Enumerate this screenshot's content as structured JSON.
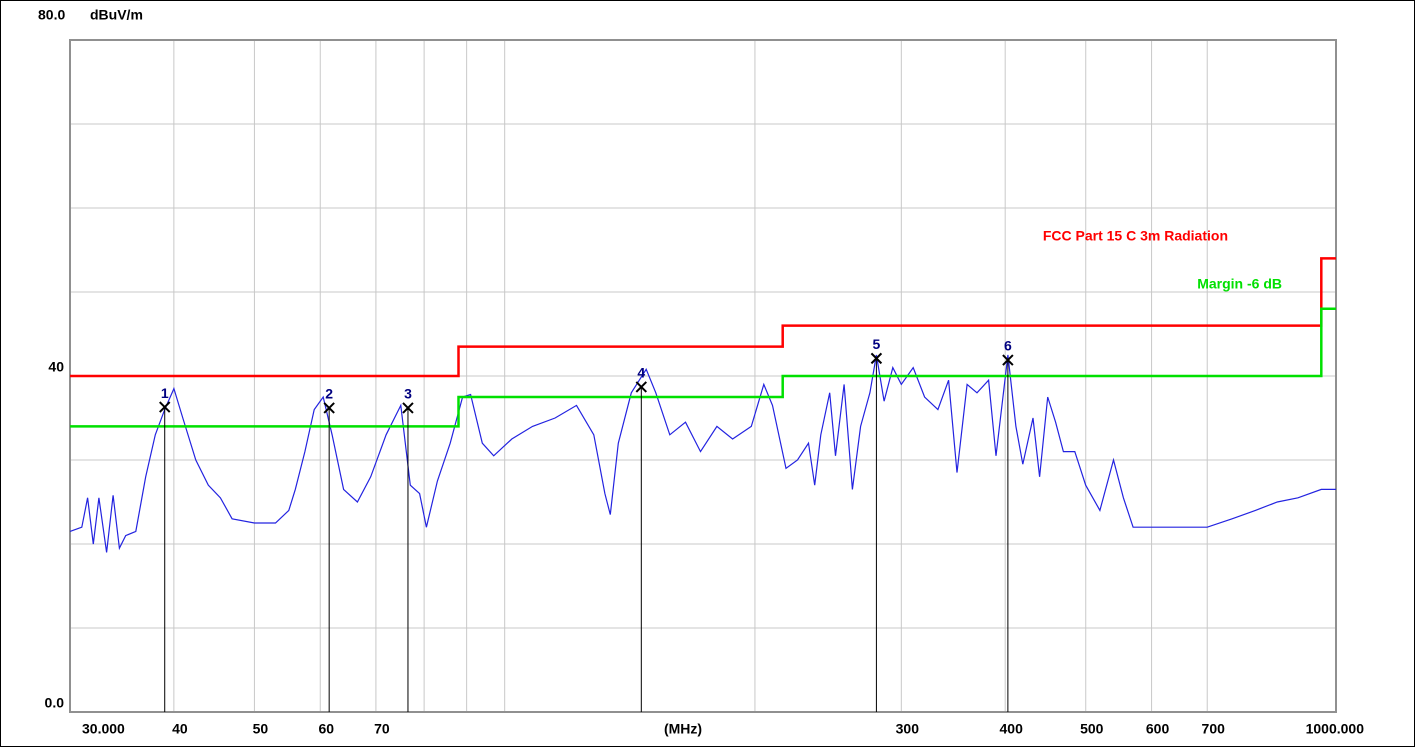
{
  "chart_data": {
    "type": "line",
    "y_label": "dBuV/m",
    "x_label": "(MHz)",
    "xscale": "log",
    "xlim": [
      30,
      1000
    ],
    "ylim": [
      0,
      80
    ],
    "xticks": [
      {
        "value": 30,
        "label": "30.000"
      },
      40,
      50,
      60,
      70,
      300,
      400,
      500,
      600,
      700,
      {
        "value": 1000,
        "label": "1000.000"
      }
    ],
    "xgrid": [
      80,
      90,
      100,
      200
    ],
    "yticks": [
      {
        "value": 0,
        "label": "0.0"
      },
      40,
      {
        "value": 80,
        "label": "80.0"
      }
    ],
    "ygrid": [
      10,
      20,
      30,
      50,
      60,
      70
    ],
    "grid": true,
    "series": [
      {
        "color": "#2323e0",
        "x": [
          30,
          31,
          31.5,
          32,
          32.5,
          33.2,
          33.8,
          34.4,
          35,
          36,
          37,
          38,
          39,
          40,
          41,
          42.5,
          44,
          45.5,
          47,
          50,
          53,
          55,
          56,
          57.5,
          59,
          60.5,
          62,
          64,
          66.5,
          69,
          72,
          75,
          77,
          79,
          80.5,
          83,
          86,
          89,
          91,
          94,
          97,
          102,
          108,
          115,
          122,
          128,
          132,
          134,
          137,
          142,
          148,
          152,
          158,
          165,
          172,
          180,
          188,
          198,
          205,
          210,
          218,
          225,
          232,
          236,
          240,
          246,
          250,
          256,
          262,
          268,
          275,
          280,
          286,
          293,
          300,
          310,
          320,
          332,
          342,
          350,
          360,
          370,
          382,
          390,
          403,
          412,
          420,
          432,
          440,
          450,
          460,
          470,
          485,
          500,
          520,
          540,
          555,
          570,
          600,
          650,
          700,
          750,
          800,
          850,
          900,
          960,
          1000
        ],
        "values": [
          21.5,
          22,
          25.5,
          20,
          25.5,
          19,
          25.8,
          19.5,
          21,
          21.5,
          28,
          33,
          36,
          38.5,
          35,
          30,
          27,
          25.5,
          23,
          22.5,
          22.5,
          24,
          26.5,
          31,
          36,
          37.5,
          33,
          26.5,
          25,
          28,
          33,
          36.5,
          27,
          26,
          22,
          27.5,
          32,
          37.5,
          37.8,
          32,
          30.5,
          32.5,
          34,
          35,
          36.5,
          33,
          26,
          23.5,
          32,
          38,
          40.8,
          38,
          33,
          34.5,
          31,
          34,
          32.5,
          34,
          39,
          36.5,
          29,
          30,
          32,
          27,
          33,
          38,
          30.5,
          39,
          26.5,
          34,
          38,
          42.5,
          37,
          41,
          39,
          41,
          37.5,
          36,
          39.5,
          28.5,
          39,
          38,
          39.5,
          30.5,
          42.5,
          34,
          29.5,
          35,
          28,
          37.5,
          34.5,
          31,
          31,
          27,
          24,
          30,
          25.5,
          22,
          22,
          22,
          22,
          23,
          24,
          25,
          25.5,
          26.5,
          26.5
        ]
      },
      {
        "name": "FCC Part 15  C 3m Radiation",
        "color": "#ff0000",
        "x": [
          30,
          88,
          88,
          216,
          216,
          960,
          960,
          1000
        ],
        "values": [
          40,
          40,
          43.5,
          43.5,
          46,
          46,
          54,
          54
        ]
      },
      {
        "name": "Margin -6 dB",
        "color": "#00e000",
        "x": [
          30,
          88,
          88,
          216,
          216,
          960,
          960,
          1000
        ],
        "values": [
          34,
          34,
          37.5,
          37.5,
          40,
          40,
          48,
          48
        ]
      }
    ],
    "markers": {
      "labels": [
        "1",
        "2",
        "3",
        "4",
        "5",
        "6"
      ],
      "x": [
        39,
        61.5,
        76.5,
        146,
        280,
        403
      ],
      "values": [
        36.3,
        36.2,
        36.2,
        38.7,
        42.1,
        41.9
      ]
    }
  }
}
